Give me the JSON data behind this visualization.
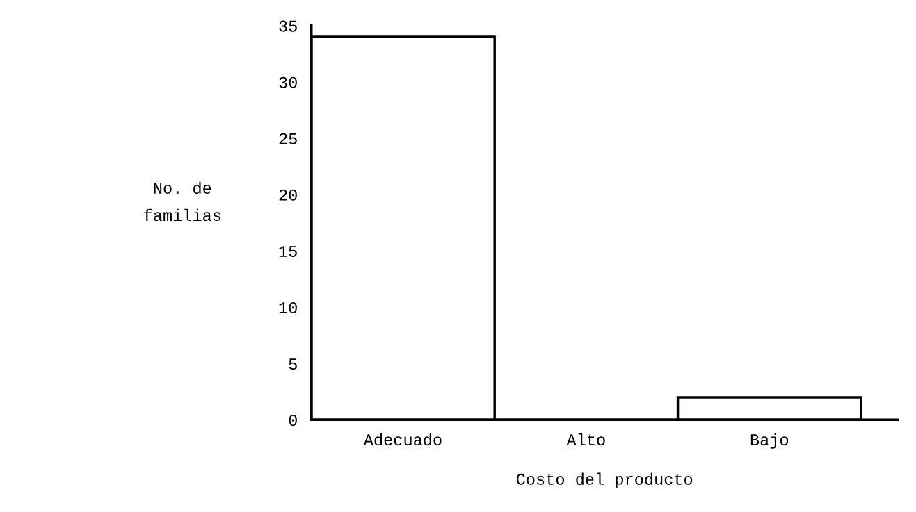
{
  "chart_data": {
    "type": "bar",
    "xlabel": "Costo del producto",
    "ylabel": "No. de\nfamilias",
    "categories": [
      "Adecuado",
      "Alto",
      "Bajo"
    ],
    "values": [
      34,
      0,
      2
    ],
    "color": "#ffffff",
    "ylim": [
      0,
      35
    ],
    "yticks": [
      0,
      5,
      10,
      15,
      20,
      25,
      30,
      35
    ],
    "grid": false
  }
}
